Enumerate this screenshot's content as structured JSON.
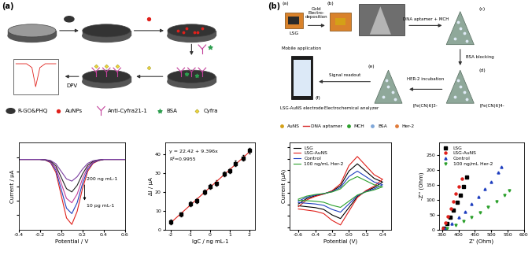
{
  "panel_labels": [
    "(a)",
    "(b)"
  ],
  "diagram_a": {
    "arrow_label": "DPV",
    "legend": [
      {
        "label": "R-GO&PHQ",
        "color": "#333333"
      },
      {
        "label": "AuNPs",
        "color": "#e0201b"
      },
      {
        "label": "Anti-Cyfra21-1",
        "color": "#c2409a"
      },
      {
        "label": "BSA",
        "color": "#2e9e4f"
      },
      {
        "label": "Cyfra",
        "color": "#f2d43c"
      }
    ]
  },
  "diagram_b": {
    "step_labels": [
      "(a)",
      "(b)",
      "(c)",
      "(d)",
      "(e)",
      "(f)"
    ],
    "electrode": "LSG",
    "deposition": "Gold\nElectro-\ndeposition",
    "functionalization": "DNA aptamer + MCH",
    "blocking": "BSA blocking",
    "incubation": "HER-2 incubation",
    "readout": "Signal readout",
    "app": "Mobile application",
    "sensor": "LSG-AuNS electrode",
    "analyzer": "Electrochemical analyzer",
    "redox": [
      "[Fe(CN)6]3-",
      "[Fe(CN)6]4-"
    ],
    "legend": [
      {
        "label": "AuNS",
        "color": "#d4a017"
      },
      {
        "label": "DNA aptamer",
        "color": "#d62728"
      },
      {
        "label": "MCH",
        "color": "#2ca02c"
      },
      {
        "label": "BSA",
        "color": "#7fa7d9"
      },
      {
        "label": "Her-2",
        "color": "#e07b39"
      }
    ]
  },
  "chart_data": [
    {
      "type": "line",
      "xlabel": "Potential / V",
      "ylabel": "Current / μA",
      "x": [
        -0.4,
        -0.35,
        -0.3,
        -0.25,
        -0.2,
        -0.15,
        -0.1,
        -0.05,
        0.0,
        0.05,
        0.1,
        0.15,
        0.2,
        0.25,
        0.3,
        0.35,
        0.4,
        0.45,
        0.5,
        0.55,
        0.6
      ],
      "series": [
        {
          "color": "#e0201b",
          "values": [
            -0.3,
            -0.3,
            -0.3,
            -0.3,
            -0.3,
            -0.39,
            -0.75,
            -2.1,
            -5.25,
            -8.4,
            -9.3,
            -7.5,
            -4.35,
            -1.92,
            -0.84,
            -0.48,
            -0.3,
            -0.3,
            -0.3,
            -0.3,
            -0.3
          ]
        },
        {
          "color": "#1f3fbf",
          "values": [
            -0.3,
            -0.3,
            -0.3,
            -0.3,
            -0.3,
            -0.38,
            -0.68,
            -1.8,
            -4.43,
            -7.05,
            -7.8,
            -6.3,
            -3.68,
            -1.65,
            -0.75,
            -0.45,
            -0.3,
            -0.3,
            -0.3,
            -0.3,
            -0.3
          ]
        },
        {
          "color": "#c2409a",
          "values": [
            -0.3,
            -0.3,
            -0.3,
            -0.3,
            -0.3,
            -0.36,
            -0.6,
            -1.5,
            -3.6,
            -5.7,
            -6.3,
            -5.1,
            -3.0,
            -1.38,
            -0.66,
            -0.42,
            -0.3,
            -0.3,
            -0.3,
            -0.3,
            -0.3
          ]
        },
        {
          "color": "#222222",
          "values": [
            -0.3,
            -0.3,
            -0.3,
            -0.3,
            -0.3,
            -0.35,
            -0.53,
            -1.2,
            -2.78,
            -4.35,
            -4.8,
            -3.9,
            -2.33,
            -1.11,
            -0.57,
            -0.39,
            -0.3,
            -0.3,
            -0.3,
            -0.3,
            -0.3
          ]
        },
        {
          "color": "#7b3fa0",
          "values": [
            -0.3,
            -0.3,
            -0.3,
            -0.3,
            -0.3,
            -0.33,
            -0.45,
            -0.9,
            -1.95,
            -3.0,
            -3.3,
            -2.7,
            -1.65,
            -0.84,
            -0.48,
            -0.36,
            -0.3,
            -0.3,
            -0.3,
            -0.3,
            -0.3
          ]
        }
      ],
      "annotations": [
        "200 ng mL-1",
        "10 pg mL-1"
      ],
      "xlim": [
        -0.4,
        0.6
      ],
      "xticks": [
        -0.4,
        -0.2,
        {
          "value": 0,
          "label": "0.0"
        },
        0.2,
        0.4,
        0.6
      ],
      "ylim": [
        -10,
        2
      ],
      "yticks": [
        -8,
        -6,
        -4,
        -2,
        0
      ],
      "tick_labels": "x"
    },
    {
      "type": "scatter",
      "xlabel": "lgC / ng mL-1",
      "ylabel": "ΔI / μA",
      "series": [
        {
          "type": "scatter",
          "color": "#000000",
          "marker": "square",
          "x": [
            -2,
            -1.5,
            -1,
            -0.7,
            -0.3,
            0,
            0.3,
            0.7,
            1,
            1.3,
            1.7,
            2
          ],
          "values": [
            4.1,
            8.0,
            13.5,
            15.2,
            19.8,
            22.9,
            24.6,
            29.5,
            31.2,
            35.1,
            38.0,
            41.8
          ],
          "errors": [
            1.2,
            1.2,
            1.3,
            1.2,
            1.3,
            1.2,
            1.4,
            1.3,
            1.2,
            1.4,
            1.3,
            1.5
          ]
        },
        {
          "type": "line",
          "color": "#e0201b",
          "x": [
            -2,
            2
          ],
          "values": [
            3.63,
            41.21
          ]
        }
      ],
      "annotations": [
        "y = 22.42 + 9.396x",
        "R²=0.9955"
      ],
      "xlim": [
        -2.3,
        2.3
      ],
      "xticks": [
        -2,
        -1,
        0,
        1,
        2
      ],
      "ylim": [
        0,
        46
      ],
      "yticks": [
        0,
        10,
        20,
        30,
        40
      ]
    },
    {
      "type": "line",
      "xlabel": "Potential (V)",
      "ylabel": "Current (μA)",
      "x": [
        -0.6,
        -0.5,
        -0.4,
        -0.3,
        -0.2,
        -0.1,
        0.0,
        0.1,
        0.2,
        0.3,
        0.4,
        0.3,
        0.2,
        0.1,
        0.0,
        -0.1,
        -0.2,
        -0.3,
        -0.4,
        -0.5,
        -0.6
      ],
      "series": [
        {
          "name": "LSG",
          "color": "#000000",
          "values": [
            -4.8,
            -2.4,
            -1.2,
            -0.4,
            0.8,
            3.2,
            9.6,
            12.8,
            9.6,
            6.4,
            4.8,
            2.4,
            0.8,
            -1.6,
            -6.4,
            -11.2,
            -9.6,
            -7.2,
            -6.4,
            -6,
            -5.6
          ]
        },
        {
          "name": "LSG-AuNS",
          "color": "#e0201b",
          "values": [
            -6,
            -3,
            -1.5,
            -0.5,
            1,
            4,
            12,
            16,
            12,
            8,
            6,
            3,
            1,
            -2,
            -8,
            -14,
            -12,
            -9,
            -8,
            -7.5,
            -7
          ]
        },
        {
          "name": "Control",
          "color": "#1f3fbf",
          "values": [
            -3.6,
            -1.8,
            -0.9,
            -0.3,
            0.6,
            2.4,
            7.2,
            9.6,
            7.2,
            4.8,
            3.6,
            1.8,
            0.6,
            -1.2,
            -4.8,
            -8.4,
            -7.2,
            -5.4,
            -4.8,
            -4.5,
            -4.2
          ]
        },
        {
          "name": "100 ng/mL Her-2",
          "color": "#2ca02c",
          "values": [
            -2.7,
            -1.35,
            -0.68,
            -0.23,
            0.45,
            1.8,
            5.4,
            7.2,
            5.4,
            3.6,
            2.7,
            1.35,
            0.45,
            -0.9,
            -3.6,
            -6.3,
            -5.4,
            -4.05,
            -3.6,
            -3.38,
            -3.15
          ]
        }
      ],
      "legend": "upper left",
      "xlim": [
        -0.7,
        0.5
      ],
      "xticks": [
        -0.6,
        -0.4,
        -0.2,
        {
          "value": 0,
          "label": "0.0"
        },
        0.2,
        0.4
      ],
      "ylim": [
        -16,
        22
      ],
      "yticks": [
        -15,
        -10,
        -5,
        0,
        5,
        10,
        15,
        20
      ],
      "tick_labels": "x"
    },
    {
      "type": "scatter",
      "xlabel": "Z' (Ohm)",
      "ylabel": "-Z'' (Ohm)",
      "series": [
        {
          "name": "LSG",
          "color": "#000000",
          "marker": "square",
          "x": [
            355,
            365,
            375,
            385,
            395,
            405,
            415,
            425
          ],
          "values": [
            5,
            20,
            40,
            65,
            90,
            115,
            145,
            175
          ]
        },
        {
          "name": "LSG-AuNS",
          "color": "#e0201b",
          "marker": "circle",
          "x": [
            352,
            360,
            368,
            376,
            384,
            392,
            400,
            410
          ],
          "values": [
            5,
            22,
            45,
            70,
            95,
            120,
            145,
            170
          ]
        },
        {
          "name": "Control",
          "color": "#1f3fbf",
          "marker": "triangle",
          "x": [
            360,
            380,
            400,
            420,
            440,
            460,
            480,
            500,
            520,
            530
          ],
          "values": [
            5,
            20,
            40,
            60,
            85,
            110,
            135,
            160,
            190,
            210
          ]
        },
        {
          "name": "100 ng/mL Her-2",
          "color": "#2ca02c",
          "marker": "triangle_down",
          "x": [
            365,
            390,
            415,
            440,
            465,
            490,
            515,
            540,
            555
          ],
          "values": [
            5,
            15,
            28,
            42,
            58,
            75,
            95,
            115,
            130
          ]
        }
      ],
      "legend": "upper left",
      "xlim": [
        340,
        600
      ],
      "xticks": [
        350,
        400,
        450,
        500,
        550,
        600
      ],
      "ylim": [
        0,
        290
      ],
      "yticks": [
        0,
        50,
        100,
        150,
        200,
        250
      ]
    }
  ]
}
